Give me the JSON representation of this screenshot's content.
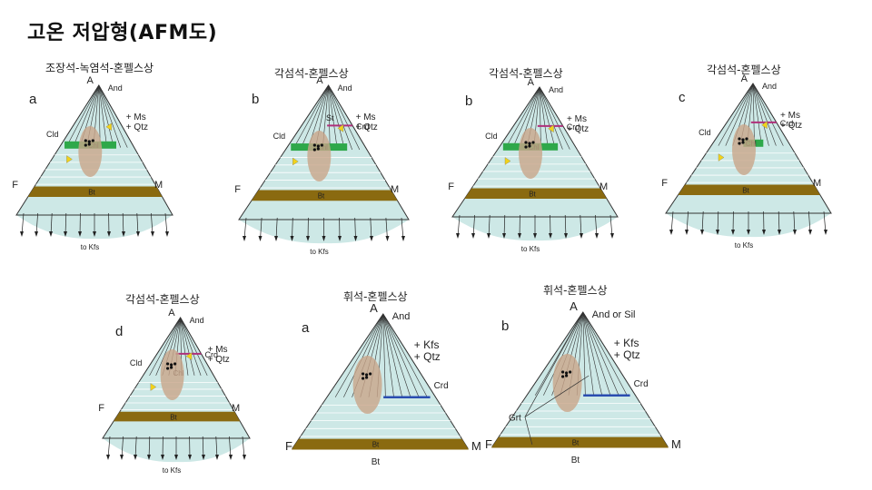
{
  "title": "고온 저압형(AFM도)",
  "facies_labels": [
    "조장석-녹염석-혼펠스상",
    "각섬석-혼펠스상",
    "각섬석-혼펠스상",
    "각섬석-혼펠스상",
    "각섬석-혼펠스상",
    "휘석-혼펠스상",
    "휘석-혼펠스상"
  ],
  "colors": {
    "field": "#cde8e6",
    "biotite_band": "#8a6a10",
    "chlorite_band": "#2ea84a",
    "cordierite_line": "#2a4db0",
    "cordierite_tie_magenta": "#b0307a",
    "ellipse": "#c9a58a",
    "arrow_marker": "#f2d21a"
  },
  "diagrams": [
    {
      "panel": "a",
      "labels": {
        "A": "A",
        "And": "And",
        "phases": "+ Ms\n+ Qtz",
        "Cld": "Cld",
        "Chl": "Chl",
        "F": "F",
        "M": "M",
        "Bt": "Bt",
        "Kfs": "to Kfs"
      }
    },
    {
      "panel": "b",
      "labels": {
        "A": "A",
        "And": "And",
        "phases": "+ Ms\n+ Qtz",
        "St": "St",
        "Cld": "Cld",
        "Crd": "Crd",
        "Chl": "Chl",
        "F": "F",
        "M": "M",
        "Bt": "Bt",
        "Kfs": "to Kfs"
      }
    },
    {
      "panel": "b",
      "labels": {
        "A": "A",
        "And": "And",
        "phases": "+ Ms\n+ Qtz",
        "Cld": "Cld",
        "Crd": "Crd",
        "Chl": "Chl",
        "F": "F",
        "M": "M",
        "Bt": "Bt",
        "Kfs": "to Kfs"
      }
    },
    {
      "panel": "c",
      "labels": {
        "A": "A",
        "And": "And",
        "phases": "+ Ms\n+ Qtz",
        "Cld": "Cld",
        "Crd": "Crd",
        "Chl": "Chl",
        "F": "F",
        "M": "M",
        "Bt": "Bt",
        "Kfs": "to Kfs"
      }
    },
    {
      "panel": "d",
      "labels": {
        "A": "A",
        "And": "And",
        "phases": "+ Ms\n+ Qtz",
        "Cld": "Cld",
        "Crd": "Crd",
        "Chl": "Chl",
        "F": "F",
        "M": "M",
        "Bt": "Bt",
        "Kfs": "to Kfs"
      }
    },
    {
      "panel": "a",
      "labels": {
        "A": "A",
        "And": "And",
        "phases": "+ Kfs\n+ Qtz",
        "Crd": "Crd",
        "F": "F",
        "M": "M",
        "Bt": "Bt"
      }
    },
    {
      "panel": "b",
      "labels": {
        "A": "A",
        "And": "And or Sil",
        "phases": "+ Kfs\n+ Qtz",
        "Crd": "Crd",
        "Grt": "Grt",
        "F": "F",
        "M": "M",
        "Bt": "Bt"
      }
    }
  ]
}
